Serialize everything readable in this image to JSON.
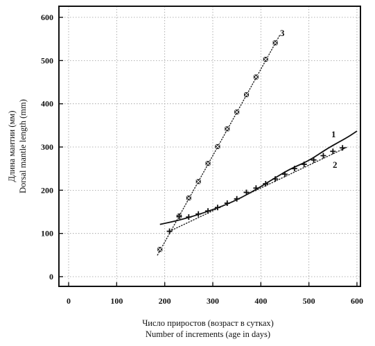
{
  "chart_data": {
    "type": "scatter",
    "xlabel_lines": [
      "Число приростов (возраст в сутках)",
      "Number of increments (age in days)"
    ],
    "ylabel_lines": [
      "Длина мантии  (мм)",
      "Dorsal mantle length  (mm)"
    ],
    "xlim": [
      -25,
      600
    ],
    "ylim": [
      -20,
      600
    ],
    "xticks": [
      0,
      100,
      200,
      300,
      400,
      500,
      600
    ],
    "yticks": [
      0,
      100,
      200,
      300,
      400,
      500,
      600
    ],
    "grid": true,
    "series": [
      {
        "name": "3",
        "marker": "x-box",
        "line_style": "dotted",
        "points": [
          {
            "x": 190,
            "y": 63
          },
          {
            "x": 230,
            "y": 140
          },
          {
            "x": 250,
            "y": 182
          },
          {
            "x": 270,
            "y": 220
          },
          {
            "x": 290,
            "y": 262
          },
          {
            "x": 310,
            "y": 301
          },
          {
            "x": 330,
            "y": 342
          },
          {
            "x": 350,
            "y": 381
          },
          {
            "x": 370,
            "y": 421
          },
          {
            "x": 390,
            "y": 462
          },
          {
            "x": 410,
            "y": 503
          },
          {
            "x": 430,
            "y": 541
          }
        ],
        "fit": [
          [
            185,
            50
          ],
          [
            440,
            560
          ]
        ]
      },
      {
        "name": "1",
        "marker": "none",
        "line_style": "solid",
        "fit_curve": [
          [
            190,
            121
          ],
          [
            220,
            128
          ],
          [
            260,
            140
          ],
          [
            300,
            155
          ],
          [
            340,
            172
          ],
          [
            380,
            195
          ],
          [
            420,
            222
          ],
          [
            460,
            249
          ],
          [
            500,
            268
          ],
          [
            540,
            298
          ],
          [
            580,
            322
          ],
          [
            600,
            337
          ]
        ]
      },
      {
        "name": "2",
        "marker": "plus",
        "line_style": "dotted",
        "points": [
          {
            "x": 210,
            "y": 105
          },
          {
            "x": 230,
            "y": 140
          },
          {
            "x": 250,
            "y": 138
          },
          {
            "x": 270,
            "y": 145
          },
          {
            "x": 290,
            "y": 152
          },
          {
            "x": 310,
            "y": 160
          },
          {
            "x": 330,
            "y": 170
          },
          {
            "x": 350,
            "y": 180
          },
          {
            "x": 370,
            "y": 195
          },
          {
            "x": 390,
            "y": 205
          },
          {
            "x": 410,
            "y": 215
          },
          {
            "x": 430,
            "y": 226
          },
          {
            "x": 450,
            "y": 237
          },
          {
            "x": 470,
            "y": 250
          },
          {
            "x": 490,
            "y": 260
          },
          {
            "x": 510,
            "y": 270
          },
          {
            "x": 530,
            "y": 280
          },
          {
            "x": 550,
            "y": 290
          },
          {
            "x": 570,
            "y": 298
          }
        ],
        "fit": [
          [
            210,
            105
          ],
          [
            580,
            300
          ]
        ]
      }
    ]
  }
}
